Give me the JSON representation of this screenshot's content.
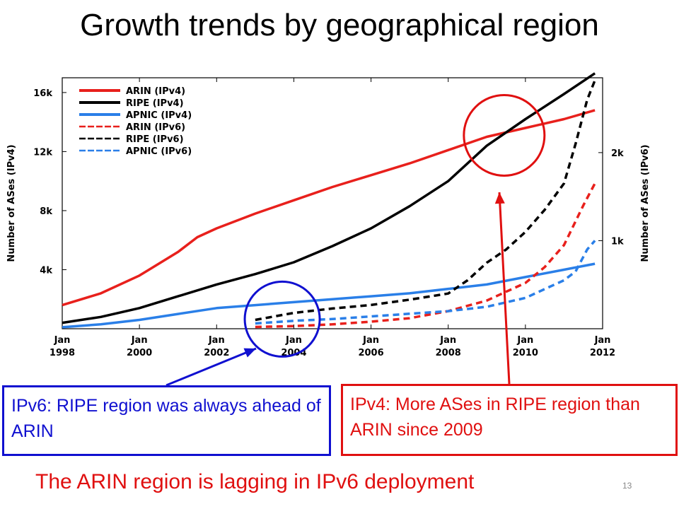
{
  "slide": {
    "title": "Growth trends by geographical region",
    "callout_blue": "IPv6: RIPE region was always ahead of ARIN",
    "callout_red": "IPv4: More ASes in RIPE region than ARIN since 2009",
    "footer": "The ARIN region is lagging in IPv6 deployment",
    "page_number": "13"
  },
  "chart_data": {
    "type": "line",
    "title": "",
    "ylabel": "Number of ASes (IPv4)",
    "y2label": "Number of ASes (IPv6)",
    "xlim": [
      1998.0,
      2012.0
    ],
    "ylim": [
      0,
      17000
    ],
    "y2lim": [
      0,
      2850
    ],
    "x_ticks": [
      {
        "x": 1998,
        "label": [
          "Jan",
          "1998"
        ]
      },
      {
        "x": 2000,
        "label": [
          "Jan",
          "2000"
        ]
      },
      {
        "x": 2002,
        "label": [
          "Jan",
          "2002"
        ]
      },
      {
        "x": 2004,
        "label": [
          "Jan",
          "2004"
        ]
      },
      {
        "x": 2006,
        "label": [
          "Jan",
          "2006"
        ]
      },
      {
        "x": 2008,
        "label": [
          "Jan",
          "2008"
        ]
      },
      {
        "x": 2010,
        "label": [
          "Jan",
          "2010"
        ]
      },
      {
        "x": 2012,
        "label": [
          "Jan",
          "2012"
        ]
      }
    ],
    "y_ticks": [
      {
        "v": 4000,
        "label": "4k"
      },
      {
        "v": 8000,
        "label": "8k"
      },
      {
        "v": 12000,
        "label": "12k"
      },
      {
        "v": 16000,
        "label": "16k"
      }
    ],
    "y2_ticks": [
      {
        "v": 1000,
        "label": "1k"
      },
      {
        "v": 2000,
        "label": "2k"
      }
    ],
    "grid": false,
    "legend_position": "top-left",
    "series": [
      {
        "name": "ARIN (IPv4)",
        "color": "#e8201c",
        "dashed": false,
        "axis": "left",
        "x": [
          1998.0,
          1999.0,
          2000.0,
          2001.0,
          2001.5,
          2002.0,
          2003.0,
          2004.0,
          2005.0,
          2006.0,
          2007.0,
          2008.0,
          2009.0,
          2010.0,
          2011.0,
          2011.8
        ],
        "y": [
          1600,
          2400,
          3600,
          5200,
          6200,
          6800,
          7800,
          8700,
          9600,
          10400,
          11200,
          12100,
          13000,
          13600,
          14200,
          14800
        ]
      },
      {
        "name": "RIPE (IPv4)",
        "color": "#000000",
        "dashed": false,
        "axis": "left",
        "x": [
          1998.0,
          1999.0,
          2000.0,
          2001.0,
          2002.0,
          2003.0,
          2004.0,
          2005.0,
          2006.0,
          2007.0,
          2008.0,
          2009.0,
          2010.0,
          2011.0,
          2011.8
        ],
        "y": [
          400,
          800,
          1400,
          2200,
          3000,
          3700,
          4500,
          5600,
          6800,
          8300,
          10000,
          12400,
          14200,
          15900,
          17300
        ]
      },
      {
        "name": "APNIC (IPv4)",
        "color": "#2a7fe8",
        "dashed": false,
        "axis": "left",
        "x": [
          1998.0,
          1999.0,
          2000.0,
          2001.0,
          2002.0,
          2003.0,
          2004.0,
          2005.0,
          2006.0,
          2007.0,
          2008.0,
          2009.0,
          2010.0,
          2011.0,
          2011.8
        ],
        "y": [
          100,
          300,
          600,
          1000,
          1400,
          1600,
          1800,
          2000,
          2200,
          2400,
          2700,
          3000,
          3500,
          4000,
          4400
        ]
      },
      {
        "name": "ARIN (IPv6)",
        "color": "#e8201c",
        "dashed": true,
        "axis": "right",
        "x": [
          2003.0,
          2004.0,
          2005.0,
          2006.0,
          2007.0,
          2008.0,
          2009.0,
          2010.0,
          2010.5,
          2011.0,
          2011.5,
          2011.8
        ],
        "y": [
          20,
          30,
          50,
          80,
          120,
          200,
          320,
          520,
          700,
          950,
          1400,
          1650
        ]
      },
      {
        "name": "RIPE (IPv6)",
        "color": "#000000",
        "dashed": true,
        "axis": "right",
        "x": [
          2003.0,
          2004.0,
          2005.0,
          2006.0,
          2007.0,
          2008.0,
          2008.5,
          2009.0,
          2009.5,
          2010.0,
          2010.5,
          2011.0,
          2011.3,
          2011.6,
          2011.8
        ],
        "y": [
          100,
          180,
          230,
          270,
          330,
          400,
          550,
          750,
          900,
          1100,
          1350,
          1650,
          2100,
          2600,
          2820
        ]
      },
      {
        "name": "APNIC (IPv6)",
        "color": "#2a7fe8",
        "dashed": true,
        "axis": "right",
        "x": [
          2003.0,
          2004.0,
          2005.0,
          2006.0,
          2007.0,
          2008.0,
          2009.0,
          2010.0,
          2010.5,
          2011.0,
          2011.3,
          2011.6,
          2011.8
        ],
        "y": [
          60,
          90,
          110,
          140,
          170,
          200,
          250,
          350,
          450,
          550,
          650,
          900,
          1000
        ]
      }
    ],
    "highlight_circles": [
      {
        "color": "#1010d0",
        "cx": 2003.7,
        "cy_v": 650
      },
      {
        "color": "#e01010",
        "cx": 2009.45,
        "cy_v": 13100
      }
    ]
  }
}
